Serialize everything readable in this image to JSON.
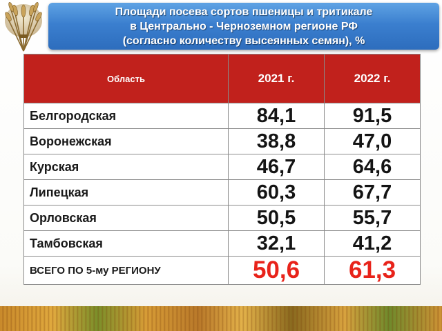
{
  "header": {
    "title_line1": "Площади посева сортов пшеницы и тритикале",
    "title_line2": "в Центрально - Черноземном регионе РФ",
    "title_line3": "(согласно количеству высеянных семян), %"
  },
  "table": {
    "columns": [
      "Область",
      "2021 г.",
      "2022 г."
    ],
    "rows": [
      {
        "region": "Белгородская",
        "y2021": "84,1",
        "y2022": "91,5"
      },
      {
        "region": "Воронежская",
        "y2021": "38,8",
        "y2022": "47,0"
      },
      {
        "region": "Курская",
        "y2021": "46,7",
        "y2022": "64,6"
      },
      {
        "region": "Липецкая",
        "y2021": "60,3",
        "y2022": "67,7"
      },
      {
        "region": "Орловская",
        "y2021": "50,5",
        "y2022": "55,7"
      },
      {
        "region": "Тамбовская",
        "y2021": "32,1",
        "y2022": "41,2"
      }
    ],
    "total": {
      "label": "ВСЕГО ПО 5-му РЕГИОНУ",
      "y2021": "50,6",
      "y2022": "61,3"
    }
  },
  "colors": {
    "header_blue": "#3b7fcf",
    "table_header_red": "#c1211c",
    "total_red": "#e8231a"
  },
  "icons": {
    "logo": "wheat-sheaf-icon"
  }
}
